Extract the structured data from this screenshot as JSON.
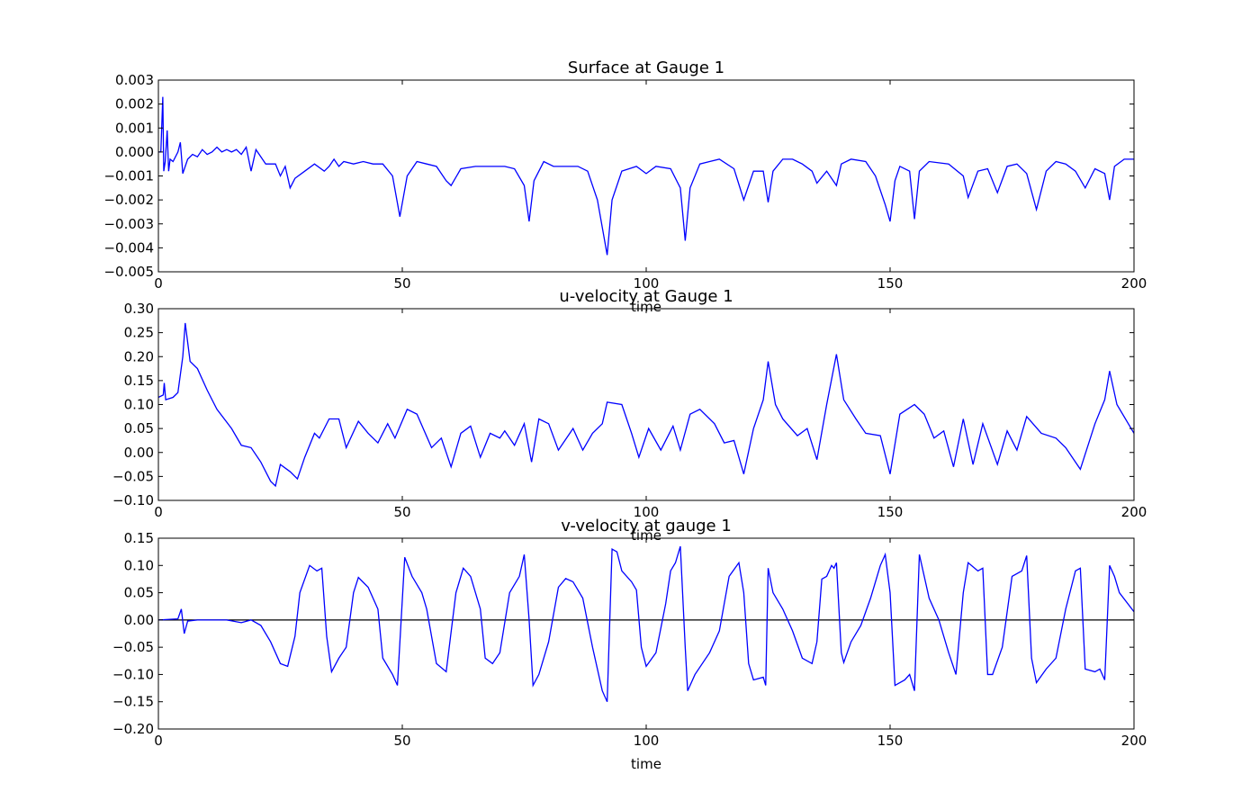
{
  "chart_data": [
    {
      "type": "line",
      "title": "Surface at Gauge 1",
      "xlabel": "time",
      "xlim": [
        0,
        200
      ],
      "xticks": [
        0,
        50,
        100,
        150,
        200
      ],
      "ylim": [
        -0.005,
        0.003
      ],
      "yticks": [
        0.003,
        0.002,
        0.001,
        {
          "value": 0,
          "label": "0.000"
        },
        {
          "value": -0.001,
          "label": "−0.001"
        },
        {
          "value": -0.002,
          "label": "−0.002"
        },
        {
          "value": -0.003,
          "label": "−0.003"
        },
        {
          "value": -0.004,
          "label": "−0.004"
        },
        {
          "value": -0.005,
          "label": "−0.005"
        }
      ],
      "x": [
        0,
        0.5,
        0.9,
        1.1,
        1.4,
        1.8,
        2.1,
        2.4,
        3,
        4,
        4.5,
        5,
        6,
        7,
        8,
        9,
        10,
        11,
        12,
        13,
        14,
        15,
        16,
        17,
        18,
        19,
        20,
        22,
        24,
        25,
        26,
        27,
        28,
        30,
        32,
        34,
        35,
        36,
        37,
        38,
        40,
        42,
        44,
        46,
        48,
        49.5,
        51,
        53,
        55,
        57,
        59,
        60,
        62,
        65,
        68,
        71,
        73,
        75,
        76,
        77,
        79,
        81,
        84,
        86,
        88,
        90,
        92,
        93,
        95,
        98,
        100,
        102,
        105,
        107,
        108,
        109,
        111,
        113,
        115,
        118,
        120,
        122,
        124,
        125,
        126,
        128,
        130,
        132,
        134,
        135,
        137,
        139,
        140,
        142,
        145,
        147,
        149,
        150,
        151,
        152,
        154,
        155,
        156,
        158,
        162,
        165,
        166,
        168,
        170,
        172,
        174,
        176,
        178,
        180,
        182,
        184,
        186,
        188,
        190,
        192,
        194,
        195,
        196,
        198,
        200
      ],
      "series": [
        {
          "name": "surface",
          "color": "#0000ff",
          "values": [
            0,
            0,
            0.0023,
            -0.0008,
            -0.0004,
            0.0009,
            -0.0008,
            -0.0003,
            -0.0004,
            0,
            0.0004,
            -0.0009,
            -0.0003,
            -0.0001,
            -0.0002,
            0.0001,
            -0.0001,
            0,
            0.0002,
            0,
            0.0001,
            0,
            0.0001,
            -0.0001,
            0.0002,
            -0.0008,
            0.0001,
            -0.0005,
            -0.0005,
            -0.001,
            -0.0006,
            -0.0015,
            -0.0011,
            -0.0008,
            -0.0005,
            -0.0008,
            -0.0006,
            -0.0003,
            -0.0006,
            -0.0004,
            -0.0005,
            -0.0004,
            -0.0005,
            -0.0005,
            -0.001,
            -0.0027,
            -0.001,
            -0.0004,
            -0.0005,
            -0.0006,
            -0.0012,
            -0.0014,
            -0.0007,
            -0.0006,
            -0.0006,
            -0.0006,
            -0.0007,
            -0.0014,
            -0.0029,
            -0.0012,
            -0.0004,
            -0.0006,
            -0.0006,
            -0.0006,
            -0.0008,
            -0.002,
            -0.0043,
            -0.002,
            -0.0008,
            -0.0006,
            -0.0009,
            -0.0006,
            -0.0007,
            -0.0015,
            -0.0037,
            -0.0015,
            -0.0005,
            -0.0004,
            -0.0003,
            -0.0007,
            -0.002,
            -0.0008,
            -0.0008,
            -0.0021,
            -0.0008,
            -0.0003,
            -0.0003,
            -0.0005,
            -0.0008,
            -0.0013,
            -0.0008,
            -0.0014,
            -0.0005,
            -0.0003,
            -0.0004,
            -0.001,
            -0.0022,
            -0.0029,
            -0.0012,
            -0.0006,
            -0.0008,
            -0.0028,
            -0.0008,
            -0.0004,
            -0.0005,
            -0.001,
            -0.0019,
            -0.0008,
            -0.0007,
            -0.0017,
            -0.0006,
            -0.0005,
            -0.0009,
            -0.0024,
            -0.0008,
            -0.0004,
            -0.0005,
            -0.0008,
            -0.0015,
            -0.0007,
            -0.0009,
            -0.002,
            -0.0006,
            -0.0003,
            -0.0003
          ]
        }
      ]
    },
    {
      "type": "line",
      "title": "u-velocity at Gauge 1",
      "xlabel": "time",
      "xlim": [
        0,
        200
      ],
      "xticks": [
        0,
        50,
        100,
        150,
        200
      ],
      "ylim": [
        -0.1,
        0.3
      ],
      "yticks": [
        {
          "value": 0.3,
          "label": "0.30"
        },
        0.25,
        {
          "value": 0.2,
          "label": "0.20"
        },
        0.15,
        {
          "value": 0.1,
          "label": "0.10"
        },
        0.05,
        {
          "value": 0,
          "label": "0.00"
        },
        {
          "value": -0.05,
          "label": "−0.05"
        },
        {
          "value": -0.1,
          "label": "−0.10"
        }
      ],
      "x": [
        0,
        1,
        1.2,
        1.5,
        3,
        4,
        5,
        5.5,
        6.5,
        8,
        10,
        12,
        15,
        17,
        19,
        21,
        23,
        24,
        25,
        27,
        28.5,
        30,
        32,
        33,
        35,
        37,
        38.5,
        41,
        43,
        45,
        47,
        48.5,
        51,
        53,
        56,
        58,
        60,
        62,
        64,
        66,
        68,
        70,
        71,
        73,
        75,
        76.5,
        78,
        80,
        82,
        85,
        87,
        89,
        91,
        92,
        95,
        97,
        98.5,
        100.5,
        103,
        105.5,
        107,
        109,
        111,
        114,
        116,
        118,
        120,
        122,
        124,
        125,
        126.5,
        128,
        131,
        133,
        135,
        137,
        139,
        140.5,
        143,
        145,
        148,
        150,
        152,
        155,
        157,
        159,
        161,
        163,
        165,
        167,
        169,
        172,
        174,
        176,
        178,
        181,
        184,
        186,
        189,
        192,
        194,
        195,
        196.5,
        200
      ],
      "series": [
        {
          "name": "u",
          "color": "#0000ff",
          "values": [
            0.115,
            0.12,
            0.145,
            0.11,
            0.115,
            0.125,
            0.2,
            0.27,
            0.19,
            0.175,
            0.13,
            0.09,
            0.05,
            0.015,
            0.01,
            -0.02,
            -0.06,
            -0.07,
            -0.025,
            -0.04,
            -0.055,
            -0.01,
            0.04,
            0.03,
            0.07,
            0.07,
            0.01,
            0.065,
            0.04,
            0.02,
            0.06,
            0.03,
            0.09,
            0.08,
            0.01,
            0.03,
            -0.03,
            0.04,
            0.055,
            -0.01,
            0.04,
            0.03,
            0.045,
            0.015,
            0.06,
            -0.02,
            0.07,
            0.06,
            0.005,
            0.05,
            0.005,
            0.04,
            0.06,
            0.105,
            0.1,
            0.04,
            -0.01,
            0.05,
            0.005,
            0.055,
            0.005,
            0.08,
            0.09,
            0.06,
            0.02,
            0.025,
            -0.045,
            0.05,
            0.11,
            0.19,
            0.1,
            0.07,
            0.035,
            0.05,
            -0.015,
            0.1,
            0.205,
            0.11,
            0.07,
            0.04,
            0.035,
            -0.045,
            0.08,
            0.1,
            0.08,
            0.03,
            0.045,
            -0.03,
            0.07,
            -0.025,
            0.06,
            -0.025,
            0.045,
            0.005,
            0.075,
            0.04,
            0.03,
            0.01,
            -0.035,
            0.06,
            0.11,
            0.17,
            0.1,
            0.04
          ]
        }
      ]
    },
    {
      "type": "line",
      "title": "v-velocity at gauge 1",
      "xlabel": "time",
      "xlim": [
        0,
        200
      ],
      "xticks": [
        0,
        50,
        100,
        150,
        200
      ],
      "ylim": [
        -0.2,
        0.15
      ],
      "hline": 0,
      "yticks": [
        0.15,
        {
          "value": 0.1,
          "label": "0.10"
        },
        0.05,
        {
          "value": 0,
          "label": "0.00"
        },
        {
          "value": -0.05,
          "label": "−0.05"
        },
        {
          "value": -0.1,
          "label": "−0.10"
        },
        {
          "value": -0.15,
          "label": "−0.15"
        },
        {
          "value": -0.2,
          "label": "−0.20"
        }
      ],
      "x": [
        0,
        4,
        4.7,
        5.3,
        6,
        8,
        14,
        17,
        19,
        21,
        23,
        25,
        26.5,
        28,
        29,
        31,
        32.5,
        33.5,
        34.5,
        35.5,
        37,
        38.5,
        40,
        41,
        43,
        45,
        46,
        48,
        49,
        50.5,
        52,
        54,
        55,
        57,
        59,
        61,
        62.5,
        64,
        66,
        67,
        68.5,
        70,
        72,
        74,
        75,
        76,
        76.8,
        78,
        80,
        82,
        83.5,
        85,
        87,
        89,
        91,
        92,
        93,
        94,
        95,
        97,
        98,
        99,
        100,
        102,
        104,
        105,
        106,
        107,
        108,
        108.5,
        110,
        113,
        115,
        117,
        119,
        120,
        121,
        122,
        124,
        124.5,
        125,
        126,
        128,
        130,
        132,
        134,
        135,
        136,
        137,
        138,
        138.5,
        139,
        140,
        140.5,
        142,
        144,
        146,
        148,
        149,
        150,
        151,
        153,
        154,
        155,
        156,
        157,
        158,
        160,
        162,
        163.5,
        165,
        166,
        168,
        169,
        170,
        171,
        173,
        175,
        177,
        178,
        179,
        180,
        182,
        184,
        186,
        188,
        189,
        190,
        192,
        193,
        194,
        195,
        196,
        197,
        200
      ],
      "series": [
        {
          "name": "v",
          "color": "#0000ff",
          "values": [
            0,
            0.002,
            0.02,
            -0.025,
            -0.002,
            0,
            0,
            -0.005,
            0,
            -0.01,
            -0.04,
            -0.08,
            -0.085,
            -0.03,
            0.05,
            0.1,
            0.09,
            0.095,
            -0.03,
            -0.095,
            -0.07,
            -0.05,
            0.05,
            0.078,
            0.06,
            0.02,
            -0.07,
            -0.1,
            -0.12,
            0.115,
            0.08,
            0.05,
            0.02,
            -0.08,
            -0.095,
            0.05,
            0.095,
            0.08,
            0.02,
            -0.07,
            -0.08,
            -0.06,
            0.05,
            0.08,
            0.12,
            0,
            -0.12,
            -0.1,
            -0.04,
            0.06,
            0.076,
            0.07,
            0.04,
            -0.05,
            -0.13,
            -0.15,
            0.13,
            0.125,
            0.09,
            0.07,
            0.055,
            -0.05,
            -0.085,
            -0.06,
            0.03,
            0.09,
            0.105,
            0.135,
            -0.05,
            -0.13,
            -0.1,
            -0.06,
            -0.02,
            0.08,
            0.105,
            0.05,
            -0.08,
            -0.11,
            -0.105,
            -0.12,
            0.095,
            0.05,
            0.02,
            -0.02,
            -0.07,
            -0.08,
            -0.04,
            0.075,
            0.08,
            0.1,
            0.095,
            0.105,
            -0.06,
            -0.078,
            -0.04,
            -0.01,
            0.04,
            0.1,
            0.12,
            0.05,
            -0.12,
            -0.11,
            -0.1,
            -0.13,
            0.12,
            0.08,
            0.04,
            0,
            -0.06,
            -0.1,
            0.05,
            0.105,
            0.09,
            0.095,
            -0.1,
            -0.1,
            -0.05,
            0.08,
            0.09,
            0.118,
            -0.07,
            -0.115,
            -0.09,
            -0.07,
            0.02,
            0.09,
            0.095,
            -0.09,
            -0.095,
            -0.09,
            -0.11,
            0.1,
            0.08,
            0.05,
            0.015
          ]
        }
      ]
    }
  ]
}
